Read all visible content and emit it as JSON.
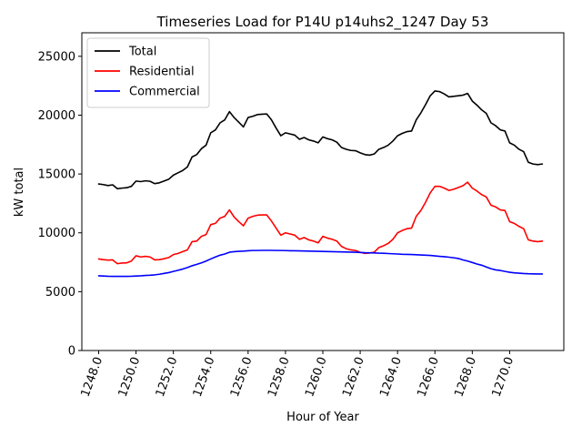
{
  "chart_data": {
    "type": "line",
    "title": "Timeseries Load for P14U p14uhs2_1247  Day 53",
    "xlabel": "Hour of Year",
    "ylabel": "kW total",
    "xlim": [
      1247.1,
      1272.9
    ],
    "ylim": [
      0,
      27000
    ],
    "xticks": [
      1248.0,
      1250.0,
      1252.0,
      1254.0,
      1256.0,
      1258.0,
      1260.0,
      1262.0,
      1264.0,
      1266.0,
      1268.0,
      1270.0
    ],
    "xtick_labels": [
      "1248.0",
      "1250.0",
      "1252.0",
      "1254.0",
      "1256.0",
      "1258.0",
      "1260.0",
      "1262.0",
      "1264.0",
      "1266.0",
      "1268.0",
      "1270.0"
    ],
    "yticks": [
      0,
      5000,
      10000,
      15000,
      20000,
      25000
    ],
    "ytick_labels": [
      "0",
      "5000",
      "10000",
      "15000",
      "20000",
      "25000"
    ],
    "legend_position": "top-left",
    "x_start": 1248.0,
    "x_step": 0.25,
    "series": [
      {
        "name": "Total",
        "color": "#000000",
        "values": [
          14150,
          14100,
          14020,
          14080,
          13750,
          13800,
          13830,
          13950,
          14400,
          14350,
          14420,
          14380,
          14180,
          14250,
          14400,
          14550,
          14900,
          15100,
          15300,
          15600,
          16450,
          16650,
          17150,
          17450,
          18500,
          18750,
          19350,
          19600,
          20300,
          19800,
          19400,
          19000,
          19800,
          19900,
          20050,
          20080,
          20100,
          19600,
          18900,
          18250,
          18500,
          18400,
          18300,
          17950,
          18100,
          17900,
          17800,
          17650,
          18150,
          18000,
          17900,
          17700,
          17250,
          17100,
          17000,
          16980,
          16800,
          16650,
          16600,
          16700,
          17100,
          17250,
          17450,
          17800,
          18250,
          18450,
          18600,
          18650,
          19600,
          20200,
          20900,
          21650,
          22050,
          22000,
          21800,
          21550,
          21600,
          21650,
          21700,
          21850,
          21200,
          20850,
          20450,
          20150,
          19350,
          19100,
          18750,
          18650,
          17650,
          17450,
          17100,
          16900,
          16000,
          15850,
          15800,
          15850
        ]
      },
      {
        "name": "Residential",
        "color": "#ff0000",
        "values": [
          7780,
          7720,
          7680,
          7700,
          7380,
          7430,
          7450,
          7600,
          8050,
          7950,
          8000,
          7950,
          7700,
          7720,
          7800,
          7900,
          8150,
          8250,
          8400,
          8550,
          9250,
          9300,
          9700,
          9850,
          10700,
          10800,
          11250,
          11400,
          11950,
          11350,
          10950,
          10600,
          11250,
          11400,
          11500,
          11520,
          11520,
          11000,
          10400,
          9800,
          10000,
          9900,
          9800,
          9450,
          9600,
          9400,
          9300,
          9150,
          9700,
          9550,
          9450,
          9300,
          8850,
          8650,
          8550,
          8500,
          8350,
          8250,
          8280,
          8350,
          8750,
          8900,
          9100,
          9450,
          10000,
          10200,
          10350,
          10400,
          11400,
          11900,
          12600,
          13400,
          13950,
          13950,
          13800,
          13600,
          13700,
          13850,
          14000,
          14300,
          13800,
          13550,
          13250,
          13050,
          12350,
          12200,
          11950,
          11900,
          10950,
          10800,
          10550,
          10350,
          9400,
          9300,
          9250,
          9300
        ]
      },
      {
        "name": "Commercial",
        "color": "#0000ff",
        "values": [
          6350,
          6330,
          6310,
          6300,
          6300,
          6300,
          6300,
          6310,
          6330,
          6350,
          6380,
          6400,
          6430,
          6480,
          6550,
          6620,
          6720,
          6820,
          6920,
          7050,
          7200,
          7320,
          7450,
          7600,
          7780,
          7950,
          8100,
          8200,
          8350,
          8400,
          8430,
          8450,
          8480,
          8500,
          8500,
          8510,
          8510,
          8510,
          8500,
          8500,
          8490,
          8480,
          8480,
          8470,
          8460,
          8450,
          8440,
          8430,
          8420,
          8410,
          8400,
          8390,
          8380,
          8370,
          8360,
          8350,
          8330,
          8310,
          8300,
          8290,
          8270,
          8260,
          8240,
          8220,
          8200,
          8180,
          8170,
          8160,
          8140,
          8120,
          8100,
          8080,
          8040,
          8000,
          7970,
          7930,
          7880,
          7820,
          7700,
          7600,
          7480,
          7350,
          7250,
          7100,
          6950,
          6850,
          6800,
          6720,
          6650,
          6600,
          6570,
          6540,
          6520,
          6510,
          6500,
          6500
        ]
      }
    ]
  }
}
